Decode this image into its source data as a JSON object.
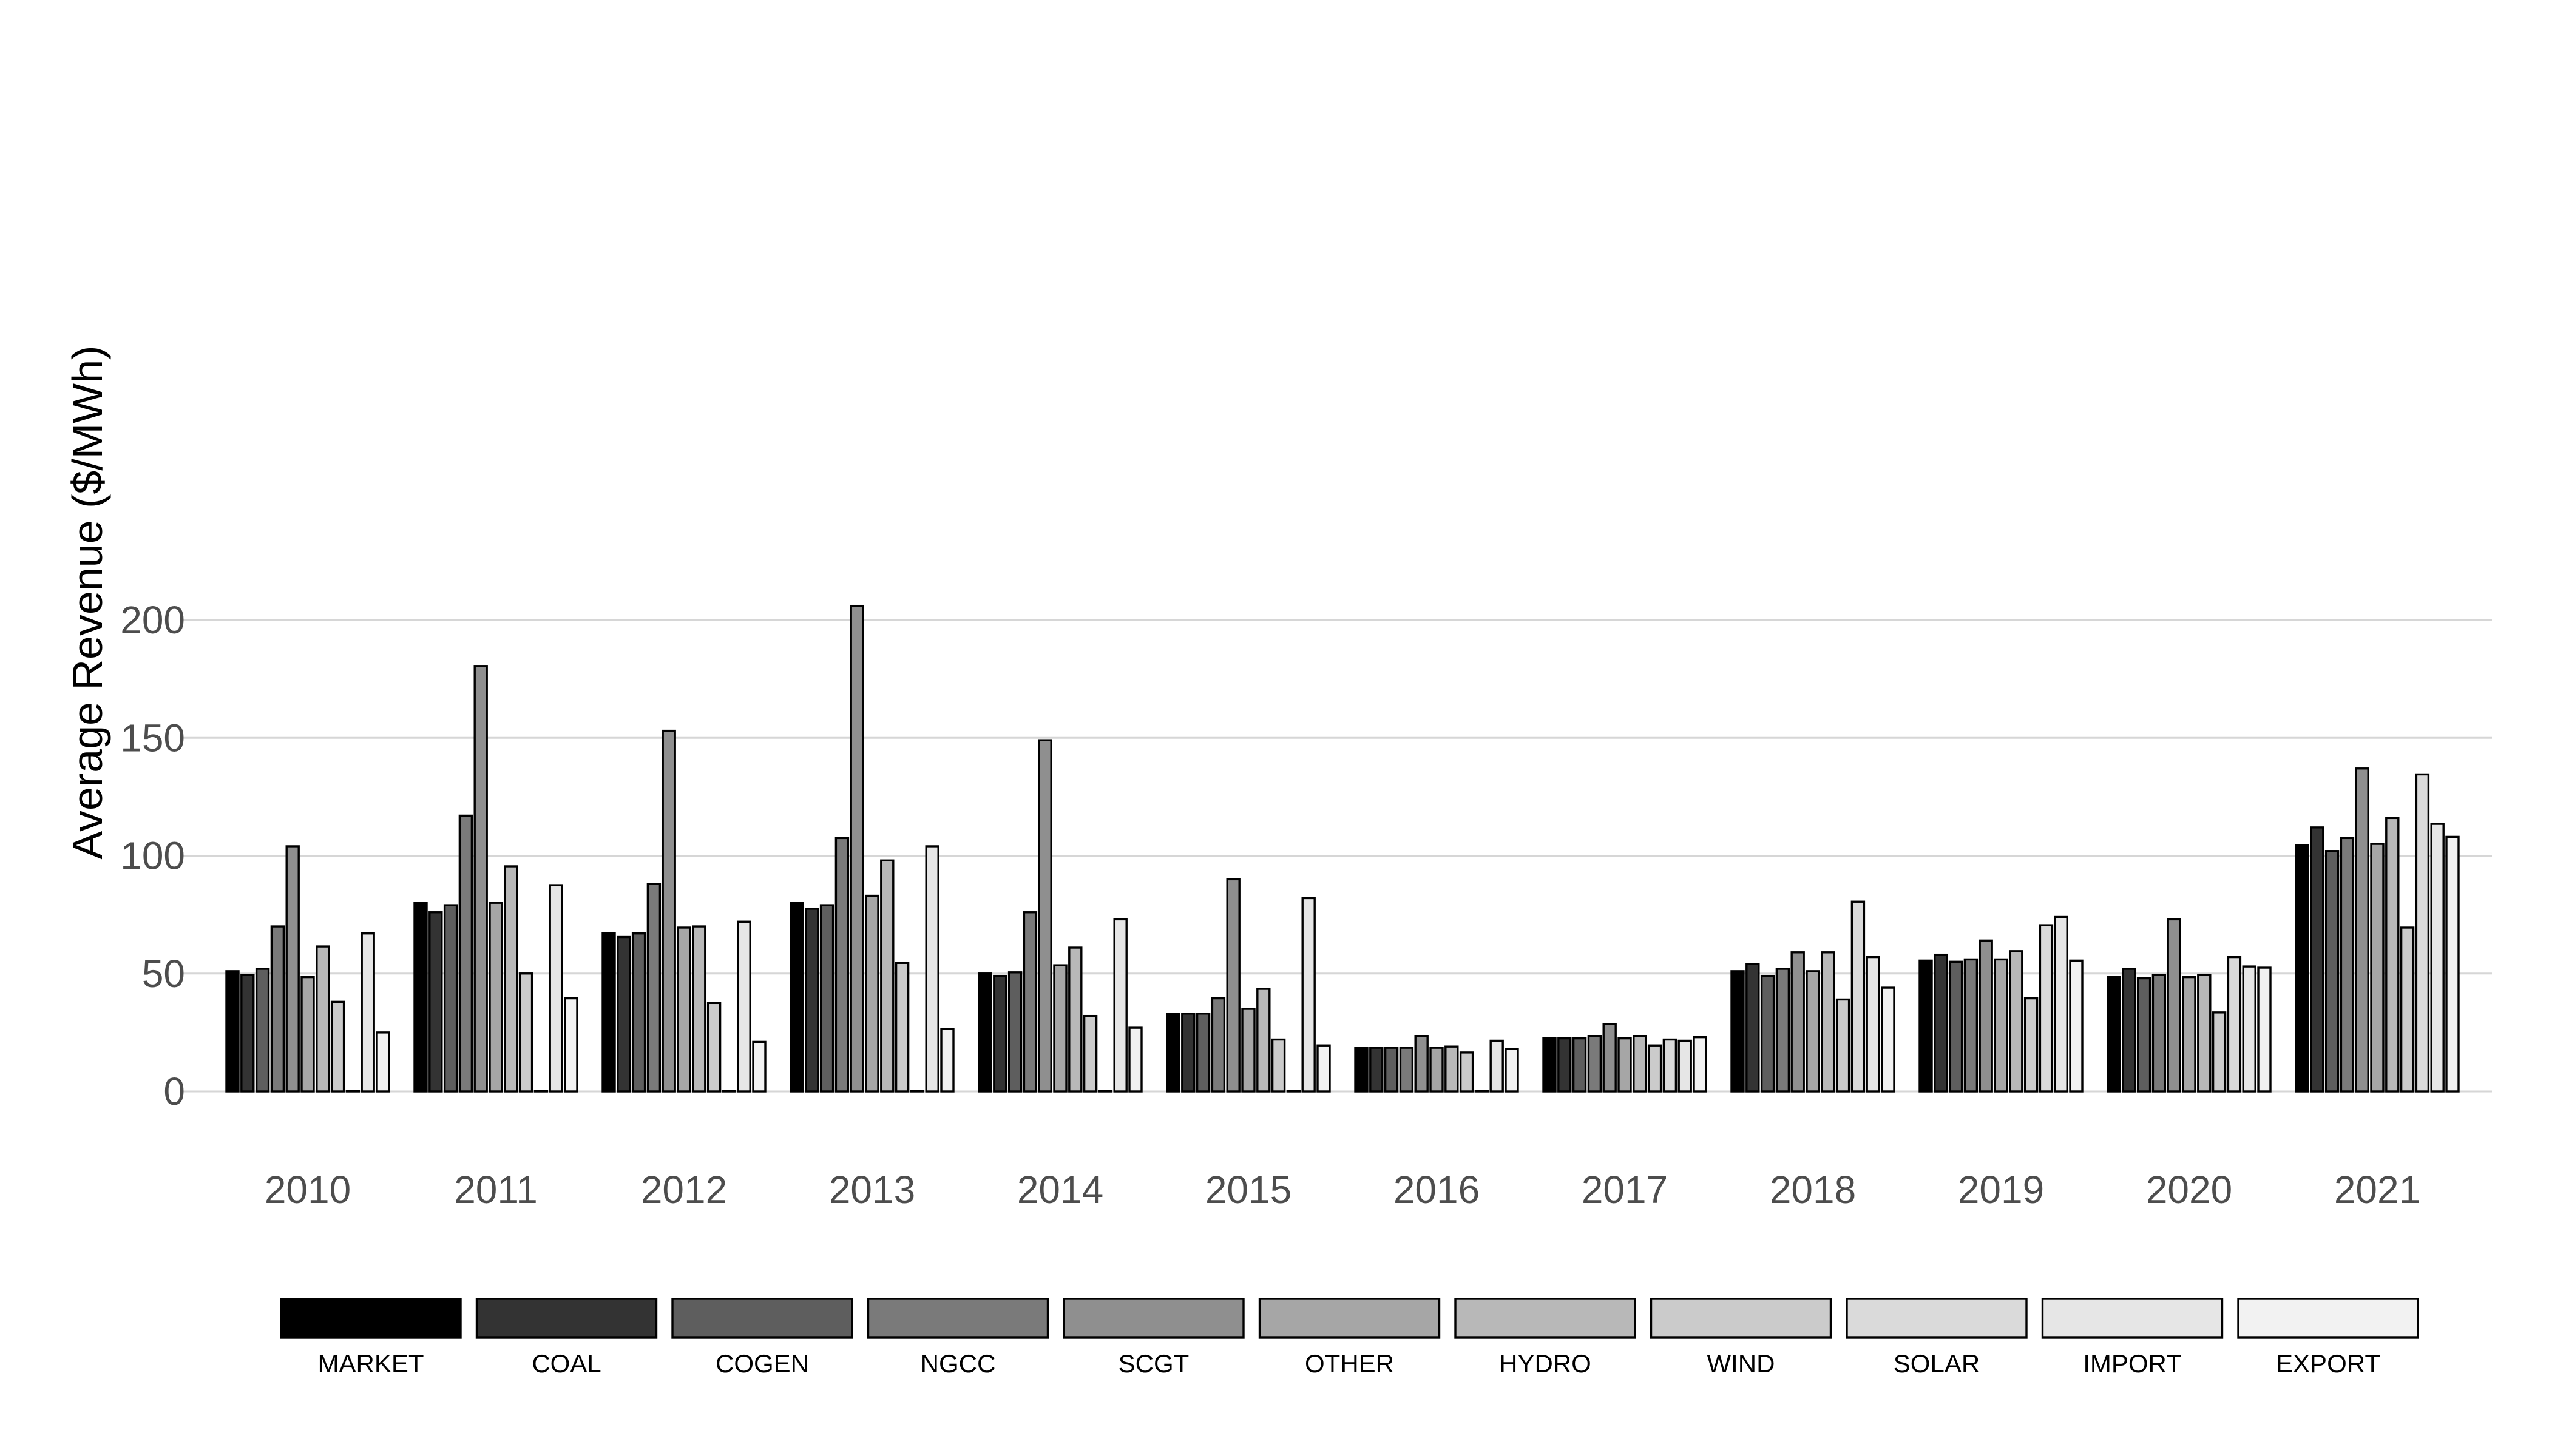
{
  "chart_data": {
    "type": "bar",
    "title": "",
    "xlabel": "",
    "ylabel": "Average Revenue ($/MWh)",
    "ylim": [
      -20,
      215
    ],
    "yticks": [
      "0",
      "50",
      "100",
      "150",
      "200"
    ],
    "ytick_values": [
      0,
      50,
      100,
      150,
      200
    ],
    "grid": "horizontal major",
    "legend_position": "bottom",
    "categories": [
      "2010",
      "2011",
      "2012",
      "2013",
      "2014",
      "2015",
      "2016",
      "2017",
      "2018",
      "2019",
      "2020",
      "2021"
    ],
    "series": [
      {
        "name": "MARKET",
        "color": "#000000",
        "values": [
          51,
          80,
          67,
          80,
          50,
          33,
          18.5,
          22.5,
          51,
          55.5,
          48.5,
          104.5
        ]
      },
      {
        "name": "COAL",
        "color": "#333333",
        "values": [
          49.5,
          76,
          65.5,
          77.5,
          49,
          33,
          18.5,
          22.5,
          54,
          58,
          52,
          112
        ]
      },
      {
        "name": "COGEN",
        "color": "#5e5e5e",
        "values": [
          52,
          79,
          67,
          79,
          50.5,
          33,
          18.5,
          22.5,
          49,
          55,
          48,
          102
        ]
      },
      {
        "name": "NGCC",
        "color": "#7a7a7a",
        "values": [
          70,
          117,
          88,
          107.5,
          76,
          39.5,
          18.5,
          23.5,
          52,
          56,
          49.5,
          107.5
        ]
      },
      {
        "name": "SCGT",
        "color": "#8f8f8f",
        "values": [
          104,
          180.5,
          153,
          206,
          149,
          90,
          23.5,
          28.5,
          59,
          64,
          73,
          137
        ]
      },
      {
        "name": "OTHER",
        "color": "#a6a6a6",
        "values": [
          48.5,
          80,
          69.5,
          83,
          53.5,
          35,
          18.5,
          22.5,
          51,
          56,
          48.5,
          105
        ]
      },
      {
        "name": "HYDRO",
        "color": "#b8b8b8",
        "values": [
          61.5,
          95.5,
          70,
          98,
          61,
          43.5,
          19,
          23.5,
          59,
          59.5,
          49.5,
          116
        ]
      },
      {
        "name": "WIND",
        "color": "#cbcbcb",
        "values": [
          38,
          50,
          37.5,
          54.5,
          32,
          22,
          16.5,
          19.5,
          39,
          39.5,
          33.5,
          69.5
        ]
      },
      {
        "name": "SOLAR",
        "color": "#dadada",
        "values": [
          0,
          0,
          0,
          0,
          0,
          0,
          0,
          22,
          80.5,
          70.5,
          57,
          134.5
        ]
      },
      {
        "name": "IMPORT",
        "color": "#e6e6e6",
        "values": [
          67,
          87.5,
          72,
          104,
          73,
          82,
          21.5,
          21.5,
          57,
          74,
          53,
          113.5
        ]
      },
      {
        "name": "EXPORT",
        "color": "#f2f2f2",
        "values": [
          25,
          39.5,
          21,
          26.5,
          27,
          19.5,
          18,
          23,
          44,
          55.5,
          52.5,
          108
        ]
      }
    ]
  }
}
